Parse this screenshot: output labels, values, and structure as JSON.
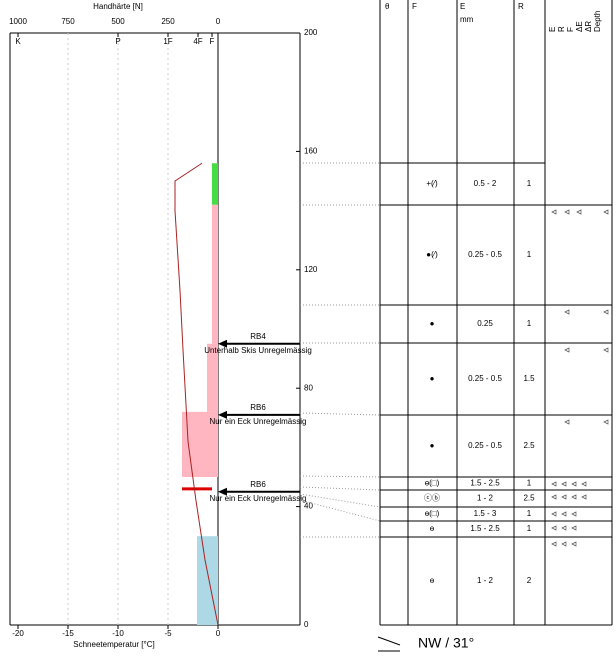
{
  "chart_data": {
    "type": "snow-profile",
    "hardness_axis": {
      "label": "Handhärte [N]",
      "xlim": [
        1000,
        0
      ],
      "xticks": [
        1000,
        750,
        500,
        250,
        0
      ],
      "letter_ticks": [
        {
          "value": 1000,
          "label": "K"
        },
        {
          "value": 500,
          "label": "P"
        },
        {
          "value": 250,
          "label": "1F"
        },
        {
          "value": 100,
          "label": "4F"
        },
        {
          "value": 30,
          "label": "F"
        }
      ]
    },
    "temperature_axis": {
      "label": "Schneetemperatur [°C]",
      "xlim": [
        -20,
        0
      ],
      "xticks": [
        -20,
        -15,
        -10,
        -5,
        0
      ],
      "color": "#cc0000"
    },
    "ylim": [
      0,
      200
    ],
    "yticks": [
      0,
      40,
      80,
      120,
      160,
      200
    ],
    "layers": [
      {
        "bottom": 0,
        "top": 30,
        "hardness": 105,
        "color": "#add8e6"
      },
      {
        "bottom": 50,
        "top": 72,
        "hardness": 180,
        "color": "#ffb6c1"
      },
      {
        "bottom": 72,
        "top": 95,
        "hardness": 55,
        "color": "#ffb6c1"
      },
      {
        "bottom": 95,
        "top": 142,
        "hardness": 30,
        "color": "#ffb6c1"
      },
      {
        "bottom": 142,
        "top": 156,
        "hardness": 30,
        "color": "#44dd44"
      }
    ],
    "critical_layer": {
      "height": 46,
      "hardness": 180,
      "color": "#dd0000"
    },
    "temperature": {
      "color": "#aa2222",
      "heights": [
        0,
        22,
        42,
        62,
        93,
        113,
        140,
        150,
        156
      ],
      "values": [
        0,
        -1.3,
        -2.2,
        -3,
        -3.5,
        -3.8,
        -4.3,
        -4.3,
        -1.6
      ]
    },
    "tests": [
      {
        "height": 95,
        "code": "RB4",
        "text": "Unterhalb Skis Unregelmässig"
      },
      {
        "height": 71,
        "code": "RB6",
        "text": "Nur ein Eck Unregelmässig"
      },
      {
        "height": 45,
        "code": "RB6",
        "text": "Nur ein Eck Unregelmässig"
      }
    ],
    "wind": "NW / 31°"
  },
  "table": {
    "headers": [
      "θ",
      "F",
      "E",
      "R"
    ],
    "unit": "mm",
    "flag_headers": [
      "E",
      "R",
      "F",
      "ΔE",
      "ΔR",
      "Depth"
    ],
    "rows": [
      {
        "F": "+(⁄)",
        "E": "0.5 - 2",
        "R": 1
      },
      {
        "F": "●(⁄)",
        "E": "0.25 - 0.5",
        "R": 1
      },
      {
        "F": "●",
        "E": "0.25",
        "R": 1
      },
      {
        "F": "●",
        "E": "0.25 - 0.5",
        "R": 1.5
      },
      {
        "F": "●",
        "E": "0.25 - 0.5",
        "R": 2.5
      },
      {
        "F": "ɵ(□)",
        "E": "1.5 - 2.5",
        "R": 1
      },
      {
        "F": "ⓒⓑ",
        "E": "1 - 2",
        "R": 2.5
      },
      {
        "F": "ɵ(□)",
        "E": "1.5 - 3",
        "R": 1
      },
      {
        "F": "ɵ",
        "E": "1.5 - 2.5",
        "R": 1
      },
      {
        "F": "ɵ",
        "E": "1 - 2",
        "R": 2
      }
    ]
  }
}
